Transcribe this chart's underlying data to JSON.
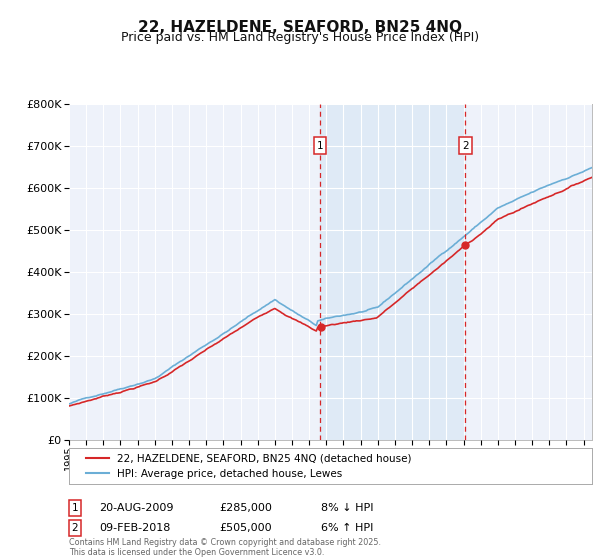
{
  "title": "22, HAZELDENE, SEAFORD, BN25 4NQ",
  "subtitle": "Price paid vs. HM Land Registry's House Price Index (HPI)",
  "legend_line1": "22, HAZELDENE, SEAFORD, BN25 4NQ (detached house)",
  "legend_line2": "HPI: Average price, detached house, Lewes",
  "annotation1": {
    "num": "1",
    "date": "20-AUG-2009",
    "price": "£285,000",
    "pct": "8% ↓ HPI"
  },
  "annotation2": {
    "num": "2",
    "date": "09-FEB-2018",
    "price": "£505,000",
    "pct": "6% ↑ HPI"
  },
  "footer": "Contains HM Land Registry data © Crown copyright and database right 2025.\nThis data is licensed under the Open Government Licence v3.0.",
  "hpi_color": "#6baed6",
  "price_color": "#d62728",
  "marker1_x_year": 2009.63,
  "marker2_x_year": 2018.1,
  "marker1_price": 285000,
  "marker2_price": 505000,
  "ylim": [
    0,
    800000
  ],
  "xlim_start": 1995.0,
  "xlim_end": 2025.5,
  "background_color": "#ffffff",
  "plot_bg_color": "#eef2fa",
  "title_fontsize": 11,
  "subtitle_fontsize": 9
}
